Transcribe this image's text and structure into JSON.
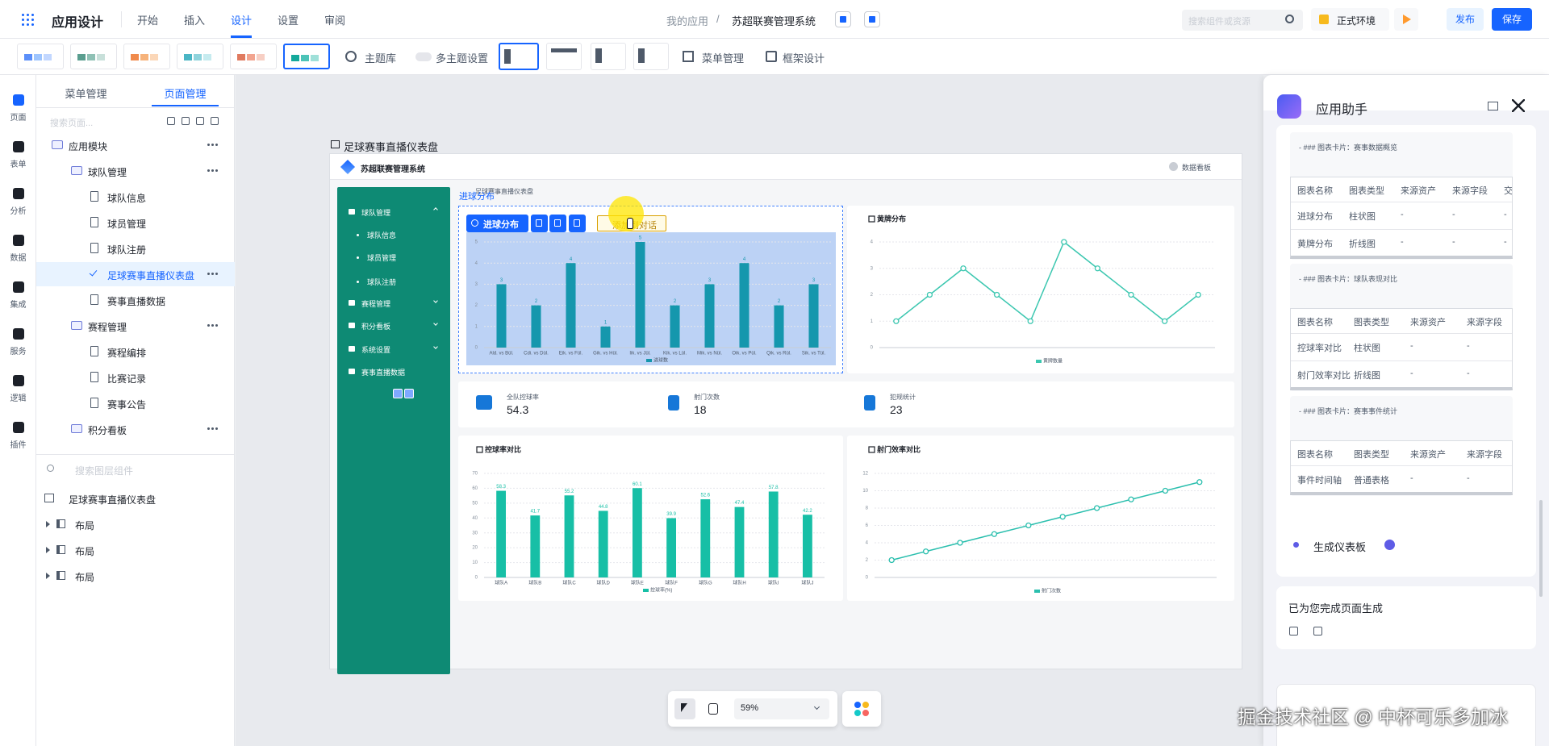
{
  "topbar": {
    "app_title": "应用设计",
    "tabs": [
      "开始",
      "插入",
      "设计",
      "设置",
      "审阅"
    ],
    "active_tab": 2,
    "breadcrumb": [
      "我的应用",
      "苏超联赛管理系统"
    ],
    "separator": "/",
    "search_placeholder": "搜索组件或资源",
    "environment": "正式环境",
    "publish": "发布",
    "save": "保存"
  },
  "toolbar": {
    "theme_library": "主题库",
    "multi_theme": "多主题设置",
    "menu_manage": "菜单管理",
    "frame_design": "框架设计"
  },
  "rail": [
    "页面",
    "表单",
    "分析",
    "数据",
    "集成",
    "服务",
    "逻辑",
    "插件"
  ],
  "left_panel": {
    "tabs": [
      "菜单管理",
      "页面管理"
    ],
    "active_tab": 1,
    "search_placeholder": "搜索页面...",
    "tree": [
      {
        "label": "应用模块",
        "level": 0
      },
      {
        "label": "球队管理",
        "level": 1
      },
      {
        "label": "球队信息",
        "level": 2
      },
      {
        "label": "球员管理",
        "level": 2
      },
      {
        "label": "球队注册",
        "level": 2
      },
      {
        "label": "足球赛事直播仪表盘",
        "level": 2,
        "selected": true
      },
      {
        "label": "赛事直播数据",
        "level": 2
      },
      {
        "label": "赛程管理",
        "level": 1
      },
      {
        "label": "赛程编排",
        "level": 2
      },
      {
        "label": "比赛记录",
        "level": 2
      },
      {
        "label": "赛事公告",
        "level": 2
      },
      {
        "label": "积分看板",
        "level": 1
      }
    ],
    "layer_search": "搜索图层组件",
    "layers": [
      {
        "label": "足球赛事直播仪表盘",
        "level": 0
      },
      {
        "label": "布局",
        "level": 1
      },
      {
        "label": "布局",
        "level": 1
      },
      {
        "label": "布局",
        "level": 1
      }
    ]
  },
  "canvas": {
    "page_title": "足球赛事直播仪表盘",
    "app_name": "苏超联赛管理系统",
    "header_action": "数据看板",
    "breadcrumb": "足球赛事直播仪表盘",
    "sidebar": [
      {
        "label": "球队管理",
        "level": 0
      },
      {
        "label": "球队信息",
        "level": 1
      },
      {
        "label": "球员管理",
        "level": 1
      },
      {
        "label": "球队注册",
        "level": 1
      },
      {
        "label": "赛程管理",
        "level": 0
      },
      {
        "label": "积分看板",
        "level": 0
      },
      {
        "label": "系统设置",
        "level": 0
      },
      {
        "label": "赛事直播数据",
        "level": 0
      }
    ],
    "selected_chart": 0,
    "selection_toolbar": {
      "title": "进球分布",
      "add_to_chat": "添加到对话"
    },
    "charts": [
      {
        "type": "bar",
        "title": "进球分布",
        "categories": [
          "Ald. vs Bül.",
          "Cdi. vs Dül.",
          "Eik. vs Fül.",
          "Gik. vs Hül.",
          "Iik. vs Jül.",
          "Kik. vs Lül.",
          "Mik. vs Nül.",
          "Oik. vs Pül.",
          "Qik. vs Rül.",
          "Sik. vs Tül."
        ],
        "series": [
          {
            "name": "进球数",
            "color": "#1597ad",
            "values": [
              3,
              2,
              4,
              1,
              5,
              2,
              3,
              4,
              2,
              3
            ]
          }
        ],
        "ylim": [
          0,
          5
        ],
        "yticks": [
          0,
          1,
          2,
          3,
          4,
          5
        ],
        "grid": true
      },
      {
        "type": "line",
        "title": "黄牌分布",
        "categories": [
          null,
          null,
          null,
          null,
          null,
          null,
          null,
          null,
          null,
          null
        ],
        "series": [
          {
            "name": "黄牌数量",
            "color": "#3cc7b0",
            "values": [
              1,
              2,
              3,
              2,
              1,
              4,
              3,
              2,
              1,
              2
            ]
          }
        ],
        "ylim": [
          0,
          4
        ],
        "yticks": [
          0,
          1,
          2,
          3,
          4
        ],
        "grid": true
      },
      {
        "type": "bar",
        "title": "控球率对比",
        "categories": [
          "球队A",
          "球队B",
          "球队C",
          "球队D",
          "球队E",
          "球队F",
          "球队G",
          "球队H",
          "球队I",
          "球队J"
        ],
        "series": [
          {
            "name": "控球率(%)",
            "color": "#17bfa6",
            "values": [
              58.3,
              41.7,
              55.2,
              44.8,
              60.1,
              39.9,
              52.6,
              47.4,
              57.8,
              42.2
            ]
          }
        ],
        "ylim": [
          0,
          70
        ],
        "yticks": [
          0,
          10,
          20,
          30,
          40,
          50,
          60,
          70
        ],
        "grid": true
      },
      {
        "type": "line",
        "title": "射门效率对比",
        "categories": [
          null,
          null,
          null,
          null,
          null,
          null,
          null,
          null,
          null,
          null
        ],
        "series": [
          {
            "name": "射门次数",
            "color": "#2bbfae",
            "values": [
              2,
              3,
              4,
              5,
              6,
              7,
              8,
              9,
              10,
              11
            ]
          }
        ],
        "ylim": [
          0,
          12
        ],
        "yticks": [
          0,
          2,
          4,
          6,
          8,
          10,
          12
        ],
        "grid": true
      }
    ],
    "kpis": [
      {
        "label": "全队控球率",
        "value": 54.3
      },
      {
        "label": "射门次数",
        "value": 18
      },
      {
        "label": "犯规统计",
        "value": 23
      }
    ],
    "zoom": "59%"
  },
  "assistant": {
    "title": "应用助手",
    "sections": [
      {
        "heading": "- ### 图表卡片：赛事数据概览",
        "columns": [
          "图表名称",
          "图表类型",
          "来源资产",
          "来源字段",
          "交"
        ],
        "rows": [
          [
            "进球分布",
            "柱状图",
            "-",
            "-",
            "-"
          ],
          [
            "黄牌分布",
            "折线图",
            "-",
            "-",
            "-"
          ]
        ]
      },
      {
        "heading": "- ### 图表卡片：球队表现对比",
        "columns": [
          "图表名称",
          "图表类型",
          "来源资产",
          "来源字段"
        ],
        "rows": [
          [
            "控球率对比",
            "柱状图",
            "-",
            "-"
          ],
          [
            "射门效率对比",
            "折线图",
            "-",
            "-"
          ]
        ]
      },
      {
        "heading": "- ### 图表卡片：赛事事件统计",
        "columns": [
          "图表名称",
          "图表类型",
          "来源资产",
          "来源字段"
        ],
        "rows": [
          [
            "事件时间轴",
            "普通表格",
            "-",
            "-"
          ]
        ]
      }
    ],
    "step": "生成仪表板",
    "reply": "已为您完成页面生成"
  },
  "watermark": "掘金技术社区 @ 中杯可乐多加冰"
}
